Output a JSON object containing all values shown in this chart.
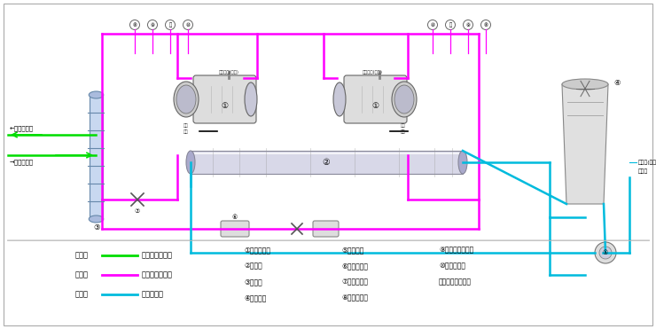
{
  "fig_width": 7.4,
  "fig_height": 3.71,
  "dpi": 100,
  "pink": "#ff00ff",
  "green": "#00dd00",
  "cyan": "#00bbdd",
  "border_color": "#999999",
  "legend": {
    "items": [
      {
        "label": "绿色线",
        "line": "载冷剂循环回路",
        "color": "#00dd00"
      },
      {
        "label": "红色线",
        "line": "制冷剂循环回路",
        "color": "#ff00ff"
      },
      {
        "label": "蓝色线",
        "line": "水循环回路",
        "color": "#00bbdd"
      }
    ]
  },
  "components_col1": [
    "①螺杆压缩机",
    "②冷凝器",
    "③蒸发器",
    "④冷却水塔"
  ],
  "components_col2": [
    "⑤冷却水泵",
    "⑥干燥过滤器",
    "⑦供液膨胀阀",
    "⑧低压压力表"
  ],
  "components_col3": [
    "⑨低压压力控制器",
    "⑩高压压力表",
    "⑪高压压力控制器"
  ]
}
